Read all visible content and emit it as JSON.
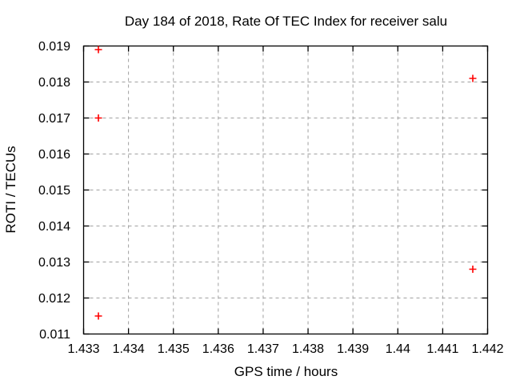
{
  "chart_data": {
    "type": "scatter",
    "title": "Day 184 of 2018, Rate Of TEC Index for receiver salu",
    "xlabel": "GPS time / hours",
    "ylabel": "ROTI / TECUs",
    "xlim": [
      1.433,
      1.442
    ],
    "ylim": [
      0.011,
      0.019
    ],
    "x_ticks": [
      {
        "value": 1.433,
        "label": "1.433"
      },
      {
        "value": 1.434,
        "label": "1.434"
      },
      {
        "value": 1.435,
        "label": "1.435"
      },
      {
        "value": 1.436,
        "label": "1.436"
      },
      {
        "value": 1.437,
        "label": "1.437"
      },
      {
        "value": 1.438,
        "label": "1.438"
      },
      {
        "value": 1.439,
        "label": "1.439"
      },
      {
        "value": 1.44,
        "label": "1.44"
      },
      {
        "value": 1.441,
        "label": "1.441"
      },
      {
        "value": 1.442,
        "label": "1.442"
      }
    ],
    "y_ticks": [
      {
        "value": 0.011,
        "label": "0.011"
      },
      {
        "value": 0.012,
        "label": "0.012"
      },
      {
        "value": 0.013,
        "label": "0.013"
      },
      {
        "value": 0.014,
        "label": "0.014"
      },
      {
        "value": 0.015,
        "label": "0.015"
      },
      {
        "value": 0.016,
        "label": "0.016"
      },
      {
        "value": 0.017,
        "label": "0.017"
      },
      {
        "value": 0.018,
        "label": "0.018"
      },
      {
        "value": 0.019,
        "label": "0.019"
      }
    ],
    "grid": true,
    "legend": "none",
    "marker": {
      "shape": "plus",
      "color": "#ff0000",
      "size": 9
    },
    "series": [
      {
        "name": "ROTI",
        "points": [
          {
            "x": 1.43333,
            "y": 0.0189
          },
          {
            "x": 1.43333,
            "y": 0.017
          },
          {
            "x": 1.43333,
            "y": 0.0115
          },
          {
            "x": 1.44167,
            "y": 0.0181
          },
          {
            "x": 1.44167,
            "y": 0.0128
          }
        ]
      }
    ],
    "colors": {
      "axis": "#000000",
      "grid": "#a0a0a0",
      "text": "#000000"
    }
  }
}
